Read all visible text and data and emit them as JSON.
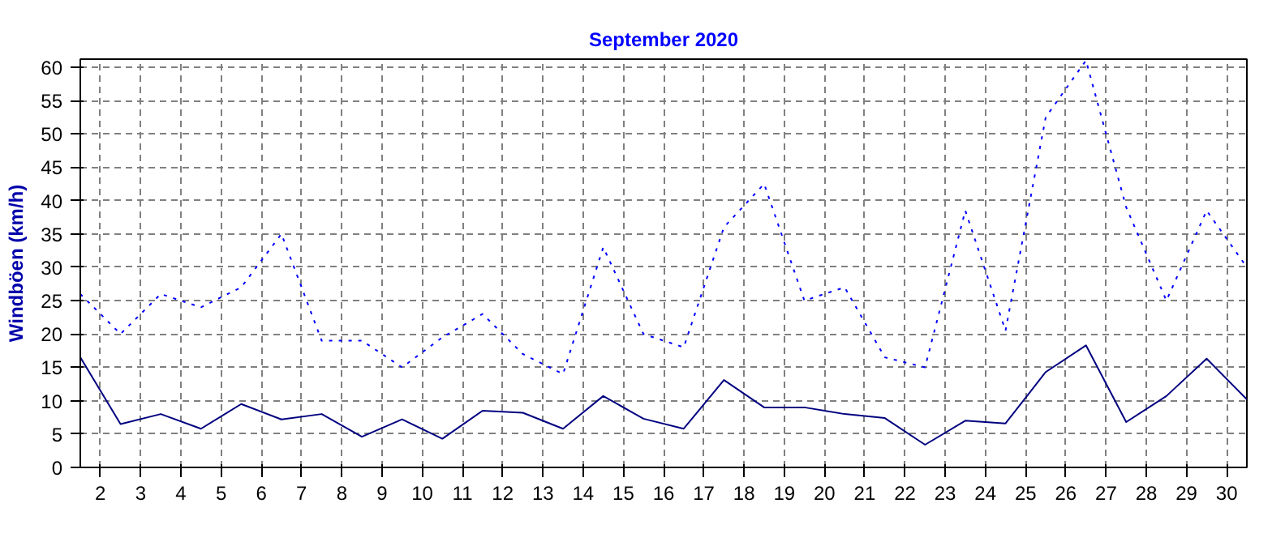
{
  "chart_data": {
    "type": "line",
    "title": "September 2020",
    "ylabel": "Windböen (km/h)",
    "x": [
      1.5,
      2.5,
      3.5,
      4.5,
      5.5,
      6.5,
      7.5,
      8.5,
      9.5,
      10.5,
      11.5,
      12.5,
      13.5,
      14.5,
      15.5,
      16.5,
      17.5,
      18.5,
      19.5,
      20.5,
      21.5,
      22.5,
      23.5,
      24.5,
      25.5,
      26.5,
      27.5,
      28.5,
      29.5,
      30.5
    ],
    "series": [
      {
        "color": "#0000ff",
        "line_style": "dotted",
        "values": [
          26,
          20,
          26,
          24,
          27,
          35,
          19,
          19,
          15,
          19.5,
          23,
          17,
          14,
          33,
          20,
          18,
          36,
          42.5,
          25,
          27,
          16.5,
          15,
          38.5,
          20.5,
          52.5,
          61,
          39,
          25,
          38.5,
          30
        ]
      },
      {
        "color": "#000080",
        "line_style": "solid",
        "values": [
          16.5,
          6.5,
          8,
          5.8,
          9.5,
          7.2,
          8,
          4.6,
          7.2,
          4.3,
          8.5,
          8.2,
          5.8,
          10.7,
          7.3,
          5.8,
          13.1,
          9,
          9,
          8,
          7.4,
          3.4,
          7,
          6.6,
          14.3,
          18.3,
          6.8,
          10.7,
          16.3,
          10.2
        ]
      }
    ],
    "xlim": [
      1.5,
      30.5
    ],
    "ylim": [
      0,
      61.2
    ],
    "xticks": [
      2,
      3,
      4,
      5,
      6,
      7,
      8,
      9,
      10,
      11,
      12,
      13,
      14,
      15,
      16,
      17,
      18,
      19,
      20,
      21,
      22,
      23,
      24,
      25,
      26,
      27,
      28,
      29,
      30
    ],
    "yticks": [
      0,
      5,
      10,
      15,
      20,
      25,
      30,
      35,
      40,
      45,
      50,
      55,
      60
    ],
    "grid": true,
    "marker": "none"
  }
}
